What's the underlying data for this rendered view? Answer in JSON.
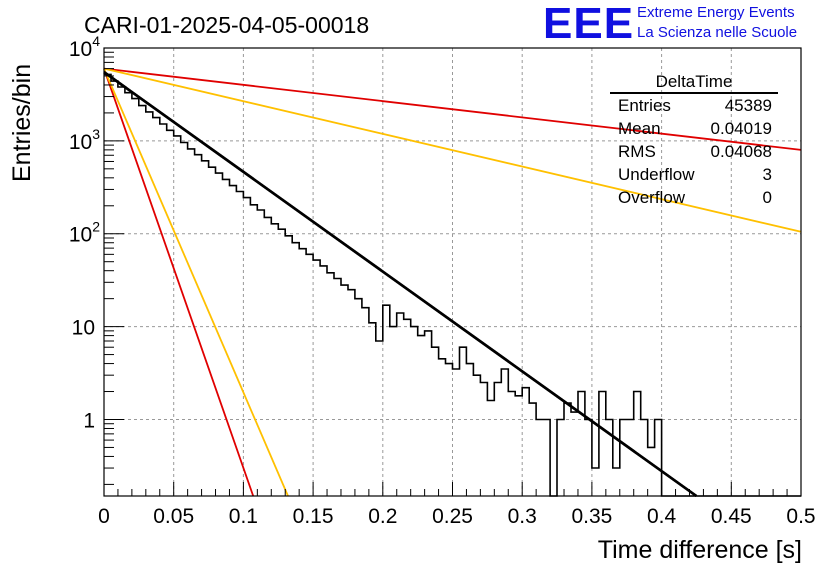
{
  "chart_data": {
    "type": "line",
    "title": "CARI-01-2025-04-05-00018",
    "xlabel": "Time difference [s]",
    "ylabel": "Entries/bin",
    "xlim": [
      0,
      0.5
    ],
    "ylim": [
      0.15,
      10000
    ],
    "y_scale": "log",
    "grid": true,
    "x_ticks": [
      "0",
      "0.05",
      "0.1",
      "0.15",
      "0.2",
      "0.25",
      "0.3",
      "0.35",
      "0.4",
      "0.45",
      "0.5"
    ],
    "x_tick_values": [
      0,
      0.05,
      0.1,
      0.15,
      0.2,
      0.25,
      0.3,
      0.35,
      0.4,
      0.45,
      0.5
    ],
    "y_tick_values": [
      1,
      10,
      100,
      1000,
      10000
    ],
    "y_tick_labels": [
      {
        "base": "1",
        "exp": ""
      },
      {
        "base": "10",
        "exp": ""
      },
      {
        "base": "10",
        "exp": "2"
      },
      {
        "base": "10",
        "exp": "3"
      },
      {
        "base": "10",
        "exp": "4"
      }
    ],
    "histogram": {
      "name": "DeltaTime",
      "color": "#000000",
      "bin_width": 0.005,
      "values": [
        5200,
        4400,
        3800,
        3300,
        2850,
        2400,
        2050,
        1780,
        1520,
        1300,
        1130,
        960,
        820,
        710,
        610,
        520,
        450,
        385,
        330,
        285,
        245,
        205,
        180,
        150,
        128,
        112,
        95,
        80,
        69,
        60,
        52,
        45,
        38,
        33,
        28,
        25,
        20,
        16,
        11,
        7,
        17,
        10,
        14,
        12,
        10,
        8,
        9,
        6,
        4.5,
        4,
        3.5,
        6,
        4,
        3,
        2.5,
        1.6,
        2.5,
        3.5,
        2,
        1.8,
        2.2,
        1.5,
        1,
        1,
        0,
        1,
        1.5,
        1.2,
        2,
        1,
        0.3,
        2,
        1,
        0.3,
        1,
        1,
        2,
        1,
        0.5,
        1,
        0,
        0,
        0,
        0,
        0,
        0,
        0,
        0,
        0,
        0,
        0,
        0,
        0,
        0,
        0,
        0,
        0,
        0,
        0,
        0
      ]
    },
    "series": [
      {
        "color": "#000000",
        "points": [
          [
            0,
            5500
          ],
          [
            0.425,
            0.15
          ]
        ]
      },
      {
        "color": "#e00000",
        "points": [
          [
            0,
            6000
          ],
          [
            0.5,
            800
          ]
        ]
      },
      {
        "color": "#ffc000",
        "points": [
          [
            0,
            6000
          ],
          [
            0.5,
            105
          ]
        ]
      },
      {
        "color": "#e00000",
        "points": [
          [
            0,
            6000
          ],
          [
            0.107,
            0.15
          ]
        ]
      },
      {
        "color": "#ffc000",
        "points": [
          [
            0,
            6000
          ],
          [
            0.132,
            0.15
          ]
        ]
      }
    ],
    "stats_box": {
      "title": "DeltaTime",
      "rows": [
        {
          "label": "Entries",
          "value": "45389"
        },
        {
          "label": "Mean",
          "value": "0.04019"
        },
        {
          "label": "RMS",
          "value": "0.04068"
        },
        {
          "label": "Underflow",
          "value": "3"
        },
        {
          "label": "Overflow",
          "value": "0"
        }
      ]
    }
  },
  "logo": {
    "mark": "EEE",
    "line1": "Extreme Energy Events",
    "line2": "La Scienza nelle Scuole",
    "color": "#1010e0"
  }
}
